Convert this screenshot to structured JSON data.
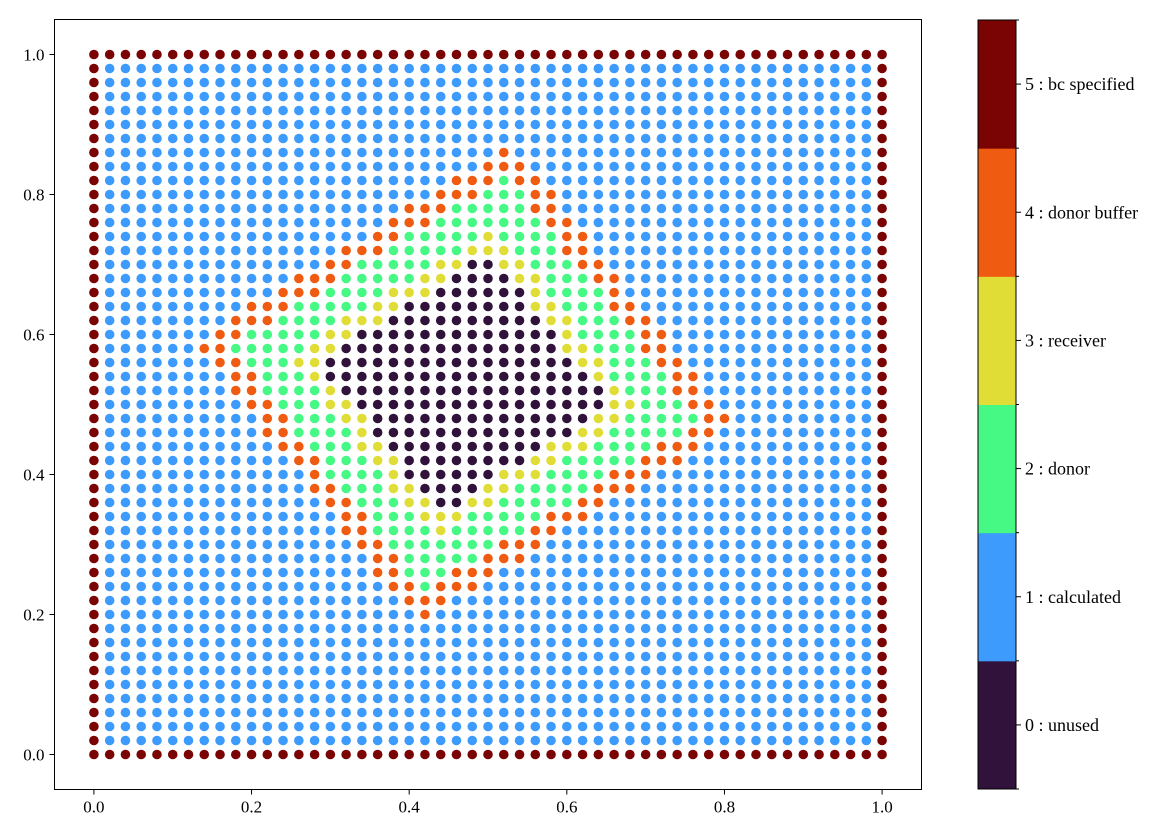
{
  "chart_data": {
    "type": "scatter",
    "title": "",
    "xlabel": "",
    "ylabel": "",
    "xlim": [
      -0.05,
      1.05
    ],
    "ylim": [
      -0.05,
      1.05
    ],
    "grid": false,
    "grid_points": {
      "nx": 51,
      "ny": 51,
      "x_start": 0.0,
      "x_end": 1.0,
      "y_start": 0.0,
      "y_end": 1.0
    },
    "x_ticks": [
      0.0,
      0.2,
      0.4,
      0.6,
      0.8,
      1.0
    ],
    "x_tick_labels": [
      "0.0",
      "0.2",
      "0.4",
      "0.6",
      "0.8",
      "1.0"
    ],
    "y_ticks": [
      0.0,
      0.2,
      0.4,
      0.6,
      0.8,
      1.0
    ],
    "y_tick_labels": [
      "0.0",
      "0.2",
      "0.4",
      "0.6",
      "0.8",
      "1.0"
    ],
    "categories": [
      {
        "code": 0,
        "label": "0 : unused",
        "color": "#30123b"
      },
      {
        "code": 1,
        "label": "1 : calculated",
        "color": "#3e9bfe"
      },
      {
        "code": 2,
        "label": "2 : donor",
        "color": "#46f884"
      },
      {
        "code": 3,
        "label": "3 : receiver",
        "color": "#e1dd37"
      },
      {
        "code": 4,
        "label": "4 : donor buffer",
        "color": "#f05b12"
      },
      {
        "code": 5,
        "label": "5 : bc specified",
        "color": "#7a0403"
      }
    ],
    "overset_region": {
      "shape": "rotated square",
      "center": [
        0.47,
        0.53
      ],
      "rotation_deg": 35,
      "unused_half_width": 0.135,
      "receiver_half_width": 0.16,
      "donor_half_width": 0.215,
      "donor_buffer_half_width": 0.245
    },
    "colorbar": {
      "position": "right",
      "ticks": [
        0,
        1,
        2,
        3,
        4,
        5
      ]
    }
  }
}
